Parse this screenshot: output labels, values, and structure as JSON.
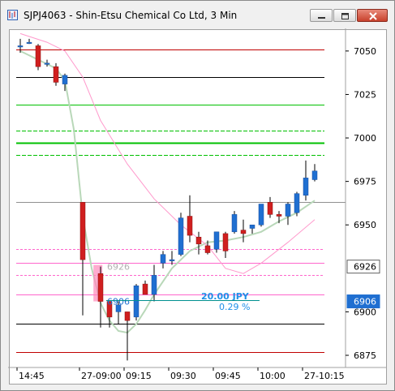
{
  "window": {
    "title": "SJPJ4063 - Shin-Etsu Chemical Co Ltd, 3 Min",
    "buttons": [
      "minimize",
      "maximize",
      "close"
    ]
  },
  "colors": {
    "up": "#1f6fd1",
    "down": "#d01f1f",
    "ma_green": "#b9d8b9",
    "ma_pink": "#ff99cc",
    "level_red": "#c00000",
    "level_green": "#00c000",
    "level_black": "#000000",
    "level_pink": "#ff66cc",
    "teal": "#009090"
  },
  "chart_data": {
    "type": "candlestick",
    "y_axis": {
      "min": 6868,
      "max": 7063,
      "ticks": [
        7050,
        7025,
        7000,
        6975,
        6950,
        6900,
        6875
      ],
      "tags": [
        {
          "label": "6926",
          "value": 6926,
          "style": "white"
        },
        {
          "label": "6906",
          "value": 6906,
          "style": "blue"
        }
      ]
    },
    "x_axis": {
      "labels": [
        {
          "text": "14:45",
          "bar": 0
        },
        {
          "text": "27-09:00",
          "bar": 7
        },
        {
          "text": "09:15",
          "bar": 12
        },
        {
          "text": "09:30",
          "bar": 17
        },
        {
          "text": "09:45",
          "bar": 22
        },
        {
          "text": "10:00",
          "bar": 27
        },
        {
          "text": "27-10:15",
          "bar": 32
        }
      ]
    },
    "candles": [
      {
        "bar": 0,
        "o": 7053,
        "h": 7057,
        "l": 7049,
        "c": 7053
      },
      {
        "bar": 1,
        "o": 7055,
        "h": 7057,
        "l": 7054,
        "c": 7055
      },
      {
        "bar": 2,
        "o": 7053,
        "h": 7054,
        "l": 7039,
        "c": 7041
      },
      {
        "bar": 3,
        "o": 7043,
        "h": 7045,
        "l": 7041,
        "c": 7043
      },
      {
        "bar": 4,
        "o": 7041,
        "h": 7043,
        "l": 7030,
        "c": 7032
      },
      {
        "bar": 5,
        "o": 7031,
        "h": 7037,
        "l": 7027,
        "c": 7036
      },
      {
        "bar": 7,
        "o": 6963,
        "h": 6963,
        "l": 6898,
        "c": 6930
      },
      {
        "bar": 9,
        "o": 6922,
        "h": 6926,
        "l": 6891,
        "c": 6906
      },
      {
        "bar": 10,
        "o": 6906,
        "h": 6906,
        "l": 6891,
        "c": 6897
      },
      {
        "bar": 11,
        "o": 6900,
        "h": 6906,
        "l": 6893,
        "c": 6904
      },
      {
        "bar": 12,
        "o": 6900,
        "h": 6900,
        "l": 6872,
        "c": 6895
      },
      {
        "bar": 13,
        "o": 6897,
        "h": 6916,
        "l": 6895,
        "c": 6915
      },
      {
        "bar": 14,
        "o": 6916,
        "h": 6918,
        "l": 6910,
        "c": 6910
      },
      {
        "bar": 15,
        "o": 6910,
        "h": 6927,
        "l": 6906,
        "c": 6921
      },
      {
        "bar": 16,
        "o": 6928,
        "h": 6935,
        "l": 6925,
        "c": 6933
      },
      {
        "bar": 17,
        "o": 6930,
        "h": 6935,
        "l": 6927,
        "c": 6930
      },
      {
        "bar": 18,
        "o": 6933,
        "h": 6957,
        "l": 6932,
        "c": 6954
      },
      {
        "bar": 19,
        "o": 6955,
        "h": 6967,
        "l": 6940,
        "c": 6944
      },
      {
        "bar": 20,
        "o": 6943,
        "h": 6946,
        "l": 6933,
        "c": 6939
      },
      {
        "bar": 21,
        "o": 6938,
        "h": 6941,
        "l": 6933,
        "c": 6934
      },
      {
        "bar": 22,
        "o": 6936,
        "h": 6946,
        "l": 6934,
        "c": 6946
      },
      {
        "bar": 23,
        "o": 6945,
        "h": 6946,
        "l": 6931,
        "c": 6935
      },
      {
        "bar": 24,
        "o": 6946,
        "h": 6958,
        "l": 6945,
        "c": 6956
      },
      {
        "bar": 25,
        "o": 6947,
        "h": 6953,
        "l": 6940,
        "c": 6945
      },
      {
        "bar": 26,
        "o": 6948,
        "h": 6950,
        "l": 6945,
        "c": 6950
      },
      {
        "bar": 27,
        "o": 6950,
        "h": 6962,
        "l": 6949,
        "c": 6962
      },
      {
        "bar": 28,
        "o": 6963,
        "h": 6966,
        "l": 6954,
        "c": 6956
      },
      {
        "bar": 29,
        "o": 6956,
        "h": 6958,
        "l": 6951,
        "c": 6955
      },
      {
        "bar": 30,
        "o": 6955,
        "h": 6963,
        "l": 6950,
        "c": 6962
      },
      {
        "bar": 31,
        "o": 6957,
        "h": 6969,
        "l": 6955,
        "c": 6968
      },
      {
        "bar": 32,
        "o": 6967,
        "h": 6987,
        "l": 6964,
        "c": 6977
      },
      {
        "bar": 33,
        "o": 6976,
        "h": 6985,
        "l": 6975,
        "c": 6981
      }
    ],
    "levels": [
      {
        "value": 7051,
        "color": "level_red",
        "width": 1
      },
      {
        "value": 7035,
        "color": "level_black",
        "width": 1
      },
      {
        "value": 7019,
        "color": "level_green",
        "width": 1
      },
      {
        "value": 7004,
        "color": "level_green",
        "width": 1,
        "dash": "5,2"
      },
      {
        "value": 6997,
        "color": "level_green",
        "width": 2
      },
      {
        "value": 6990,
        "color": "level_green",
        "width": 1,
        "dash": "5,2"
      },
      {
        "value": 6963,
        "color": "gray",
        "width": 1
      },
      {
        "value": 6936,
        "color": "level_pink",
        "width": 1,
        "dash": "3,2"
      },
      {
        "value": 6928,
        "color": "level_pink",
        "width": 1
      },
      {
        "value": 6921,
        "color": "level_pink",
        "width": 1,
        "dash": "3,2"
      },
      {
        "value": 6910,
        "color": "level_pink",
        "width": 1
      },
      {
        "value": 6893,
        "color": "level_black",
        "width": 1
      },
      {
        "value": 6877,
        "color": "level_red",
        "width": 1
      }
    ],
    "ma_pink": [
      {
        "bar": 0,
        "v": 7060
      },
      {
        "bar": 3,
        "v": 7055
      },
      {
        "bar": 5,
        "v": 7050
      },
      {
        "bar": 7,
        "v": 7035
      },
      {
        "bar": 9,
        "v": 7010
      },
      {
        "bar": 12,
        "v": 6985
      },
      {
        "bar": 15,
        "v": 6965
      },
      {
        "bar": 18,
        "v": 6950
      },
      {
        "bar": 21,
        "v": 6938
      },
      {
        "bar": 23,
        "v": 6925
      },
      {
        "bar": 25,
        "v": 6922
      },
      {
        "bar": 27,
        "v": 6928
      },
      {
        "bar": 30,
        "v": 6940
      },
      {
        "bar": 33,
        "v": 6953
      }
    ],
    "ma_green": [
      {
        "bar": 0,
        "v": 7050
      },
      {
        "bar": 2,
        "v": 7045
      },
      {
        "bar": 4,
        "v": 7040
      },
      {
        "bar": 5,
        "v": 7033
      },
      {
        "bar": 6,
        "v": 7005
      },
      {
        "bar": 7,
        "v": 6955
      },
      {
        "bar": 8,
        "v": 6925
      },
      {
        "bar": 9,
        "v": 6905
      },
      {
        "bar": 10,
        "v": 6895
      },
      {
        "bar": 11,
        "v": 6889
      },
      {
        "bar": 12,
        "v": 6888
      },
      {
        "bar": 13,
        "v": 6893
      },
      {
        "bar": 14,
        "v": 6901
      },
      {
        "bar": 15,
        "v": 6910
      },
      {
        "bar": 17,
        "v": 6925
      },
      {
        "bar": 19,
        "v": 6935
      },
      {
        "bar": 21,
        "v": 6940
      },
      {
        "bar": 23,
        "v": 6941
      },
      {
        "bar": 25,
        "v": 6943
      },
      {
        "bar": 27,
        "v": 6946
      },
      {
        "bar": 29,
        "v": 6952
      },
      {
        "bar": 31,
        "v": 6957
      },
      {
        "bar": 33,
        "v": 6964
      }
    ],
    "annotations": {
      "price_label_6926": "6926",
      "price_label_6906": "6906",
      "range_jpy": "20.00  JPY",
      "range_pct": "0.29  %"
    }
  }
}
